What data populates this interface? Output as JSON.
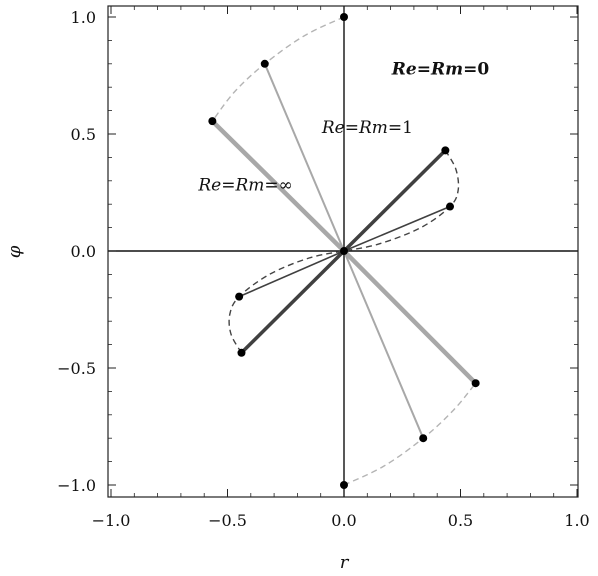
{
  "chart_data": {
    "type": "line",
    "xlabel": "r",
    "ylabel": "φ",
    "xlim": [
      -1.0,
      1.0
    ],
    "ylim": [
      -1.0,
      1.0
    ],
    "xticks": [
      -1.0,
      -0.5,
      0.0,
      0.5,
      1.0
    ],
    "yticks": [
      -1.0,
      -0.5,
      0.0,
      0.5,
      1.0
    ],
    "xtick_labels": [
      "−1.0",
      "−0.5",
      "0.0",
      "0.5",
      "1.0"
    ],
    "ytick_labels": [
      "−1.0",
      "−0.5",
      "0.0",
      "0.5",
      "1.0"
    ],
    "grid": false,
    "series": [
      {
        "style": "light-thick",
        "color": "#a8a8a8",
        "segments": [
          [
            [
              -0.565,
              0.555
            ],
            [
              0.0,
              0.0
            ]
          ],
          [
            [
              0.0,
              0.0
            ],
            [
              0.565,
              -0.565
            ]
          ]
        ]
      },
      {
        "style": "light-thin",
        "color": "#a8a8a8",
        "segments": [
          [
            [
              -0.34,
              0.8
            ],
            [
              0.0,
              0.0
            ]
          ],
          [
            [
              0.0,
              0.0
            ],
            [
              0.34,
              -0.8
            ]
          ]
        ]
      },
      {
        "style": "dark-thick",
        "color": "#404040",
        "segments": [
          [
            [
              0.0,
              0.0
            ],
            [
              0.435,
              0.43
            ]
          ],
          [
            [
              0.0,
              0.0
            ],
            [
              -0.44,
              -0.435
            ]
          ]
        ]
      },
      {
        "style": "dark-thin",
        "color": "#404040",
        "segments": [
          [
            [
              0.0,
              0.0
            ],
            [
              0.455,
              0.19
            ]
          ],
          [
            [
              0.0,
              0.0
            ],
            [
              -0.45,
              -0.195
            ]
          ]
        ]
      }
    ],
    "dashed_curves": [
      {
        "color": "#b4b4b4",
        "points": [
          [
            0.0,
            1.0
          ],
          [
            -0.17,
            0.92
          ],
          [
            -0.34,
            0.8
          ],
          [
            -0.47,
            0.68
          ],
          [
            -0.565,
            0.555
          ]
        ]
      },
      {
        "color": "#b4b4b4",
        "points": [
          [
            0.0,
            -1.0
          ],
          [
            0.17,
            -0.92
          ],
          [
            0.34,
            -0.8
          ],
          [
            0.47,
            -0.68
          ],
          [
            0.565,
            -0.565
          ]
        ]
      },
      {
        "color": "#444444",
        "points": [
          [
            0.435,
            0.43
          ],
          [
            0.48,
            0.35
          ],
          [
            0.49,
            0.26
          ],
          [
            0.455,
            0.19
          ],
          [
            0.33,
            0.1
          ],
          [
            0.15,
            0.03
          ],
          [
            0.0,
            0.0
          ]
        ]
      },
      {
        "color": "#444444",
        "points": [
          [
            -0.44,
            -0.435
          ],
          [
            -0.485,
            -0.355
          ],
          [
            -0.49,
            -0.27
          ],
          [
            -0.45,
            -0.195
          ],
          [
            -0.32,
            -0.1
          ],
          [
            -0.15,
            -0.03
          ],
          [
            0.0,
            0.0
          ]
        ]
      }
    ],
    "points": [
      [
        0.0,
        1.0
      ],
      [
        -0.34,
        0.8
      ],
      [
        -0.565,
        0.555
      ],
      [
        0.435,
        0.43
      ],
      [
        0.455,
        0.19
      ],
      [
        0.0,
        0.0
      ],
      [
        -0.45,
        -0.195
      ],
      [
        -0.44,
        -0.435
      ],
      [
        0.565,
        -0.565
      ],
      [
        0.34,
        -0.8
      ],
      [
        0.0,
        -1.0
      ]
    ],
    "annotations": [
      {
        "id": "rm0",
        "text": "Re=Rm=0",
        "x": 0.205,
        "y": 0.78,
        "bold": true
      },
      {
        "id": "rm1",
        "text": "Re=Rm=1",
        "x": -0.095,
        "y": 0.53,
        "bold": false
      },
      {
        "id": "rminf",
        "text": "Re=Rm=∞",
        "x": -0.625,
        "y": 0.285,
        "bold": false
      }
    ]
  }
}
